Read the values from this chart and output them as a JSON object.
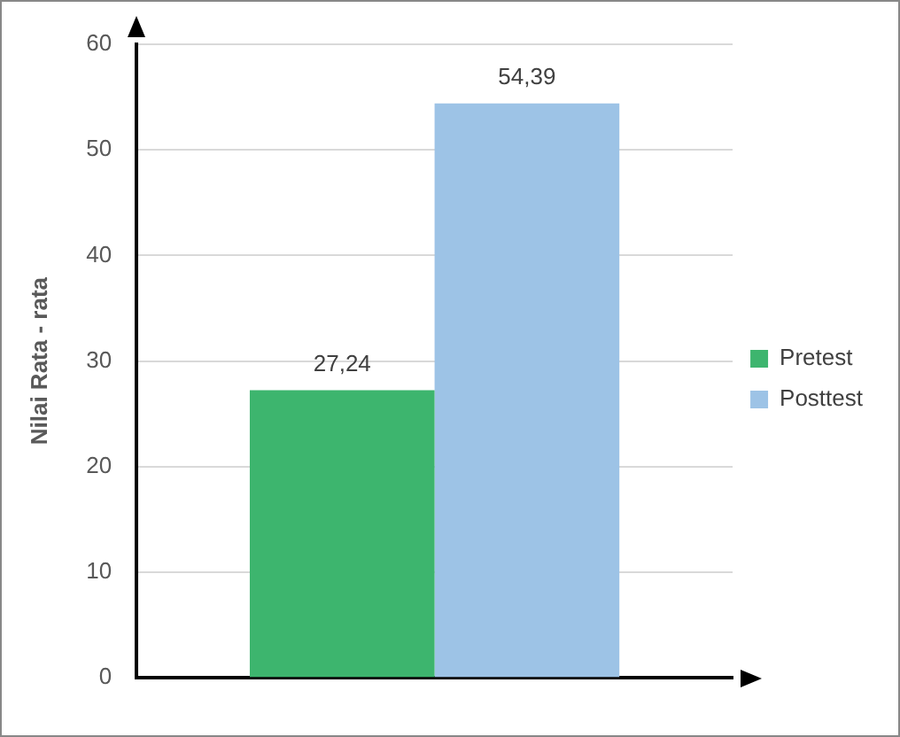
{
  "chart_data": {
    "type": "bar",
    "ylabel": "Nilai Rata - rata",
    "categories": [
      null
    ],
    "series": [
      {
        "name": "Pretest",
        "color": "#3db56e",
        "values": [
          27.24
        ],
        "value_labels": [
          "27,24"
        ]
      },
      {
        "name": "Posttest",
        "color": "#9dc3e6",
        "values": [
          54.39
        ],
        "value_labels": [
          "54,39"
        ]
      }
    ],
    "ylim": [
      0,
      60
    ],
    "yticks": [
      0,
      10,
      20,
      30,
      40,
      50,
      60
    ],
    "grid": "y",
    "legend": "right"
  }
}
